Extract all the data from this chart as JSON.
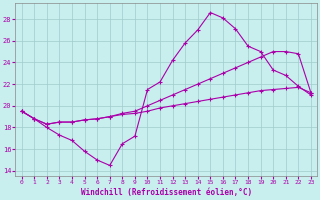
{
  "xlabel": "Windchill (Refroidissement éolien,°C)",
  "bg_color": "#c8eeed",
  "line_color": "#aa00aa",
  "xlim": [
    -0.5,
    23.5
  ],
  "ylim": [
    13.5,
    29.5
  ],
  "xticks": [
    0,
    1,
    2,
    3,
    4,
    5,
    6,
    7,
    8,
    9,
    10,
    11,
    12,
    13,
    14,
    15,
    16,
    17,
    18,
    19,
    20,
    21,
    22,
    23
  ],
  "yticks": [
    14,
    16,
    18,
    20,
    22,
    24,
    26,
    28
  ],
  "series": [
    {
      "x": [
        0,
        1,
        2,
        3,
        4,
        5,
        6,
        7,
        8,
        9,
        10,
        11,
        12,
        13,
        14,
        15,
        16,
        17,
        18,
        19,
        20,
        21,
        22,
        23
      ],
      "y": [
        19.5,
        18.8,
        18.0,
        17.3,
        16.8,
        15.8,
        15.0,
        14.5,
        16.5,
        17.2,
        21.5,
        22.2,
        24.2,
        25.8,
        27.0,
        28.6,
        28.1,
        27.1,
        25.5,
        25.0,
        23.3,
        22.8,
        21.8,
        21.0
      ]
    },
    {
      "x": [
        0,
        1,
        2,
        3,
        4,
        5,
        6,
        7,
        8,
        9,
        10,
        11,
        12,
        13,
        14,
        15,
        16,
        17,
        18,
        19,
        20,
        21,
        22,
        23
      ],
      "y": [
        19.5,
        18.8,
        18.3,
        18.5,
        18.5,
        18.7,
        18.8,
        19.0,
        19.3,
        19.5,
        20.0,
        20.5,
        21.0,
        21.5,
        22.0,
        22.5,
        23.0,
        23.5,
        24.0,
        24.5,
        25.0,
        25.0,
        24.8,
        21.2
      ]
    },
    {
      "x": [
        0,
        1,
        2,
        3,
        4,
        5,
        6,
        7,
        8,
        9,
        10,
        11,
        12,
        13,
        14,
        15,
        16,
        17,
        18,
        19,
        20,
        21,
        22,
        23
      ],
      "y": [
        19.5,
        18.8,
        18.3,
        18.5,
        18.5,
        18.7,
        18.8,
        19.0,
        19.2,
        19.3,
        19.5,
        19.8,
        20.0,
        20.2,
        20.4,
        20.6,
        20.8,
        21.0,
        21.2,
        21.4,
        21.5,
        21.6,
        21.7,
        21.2
      ]
    }
  ]
}
